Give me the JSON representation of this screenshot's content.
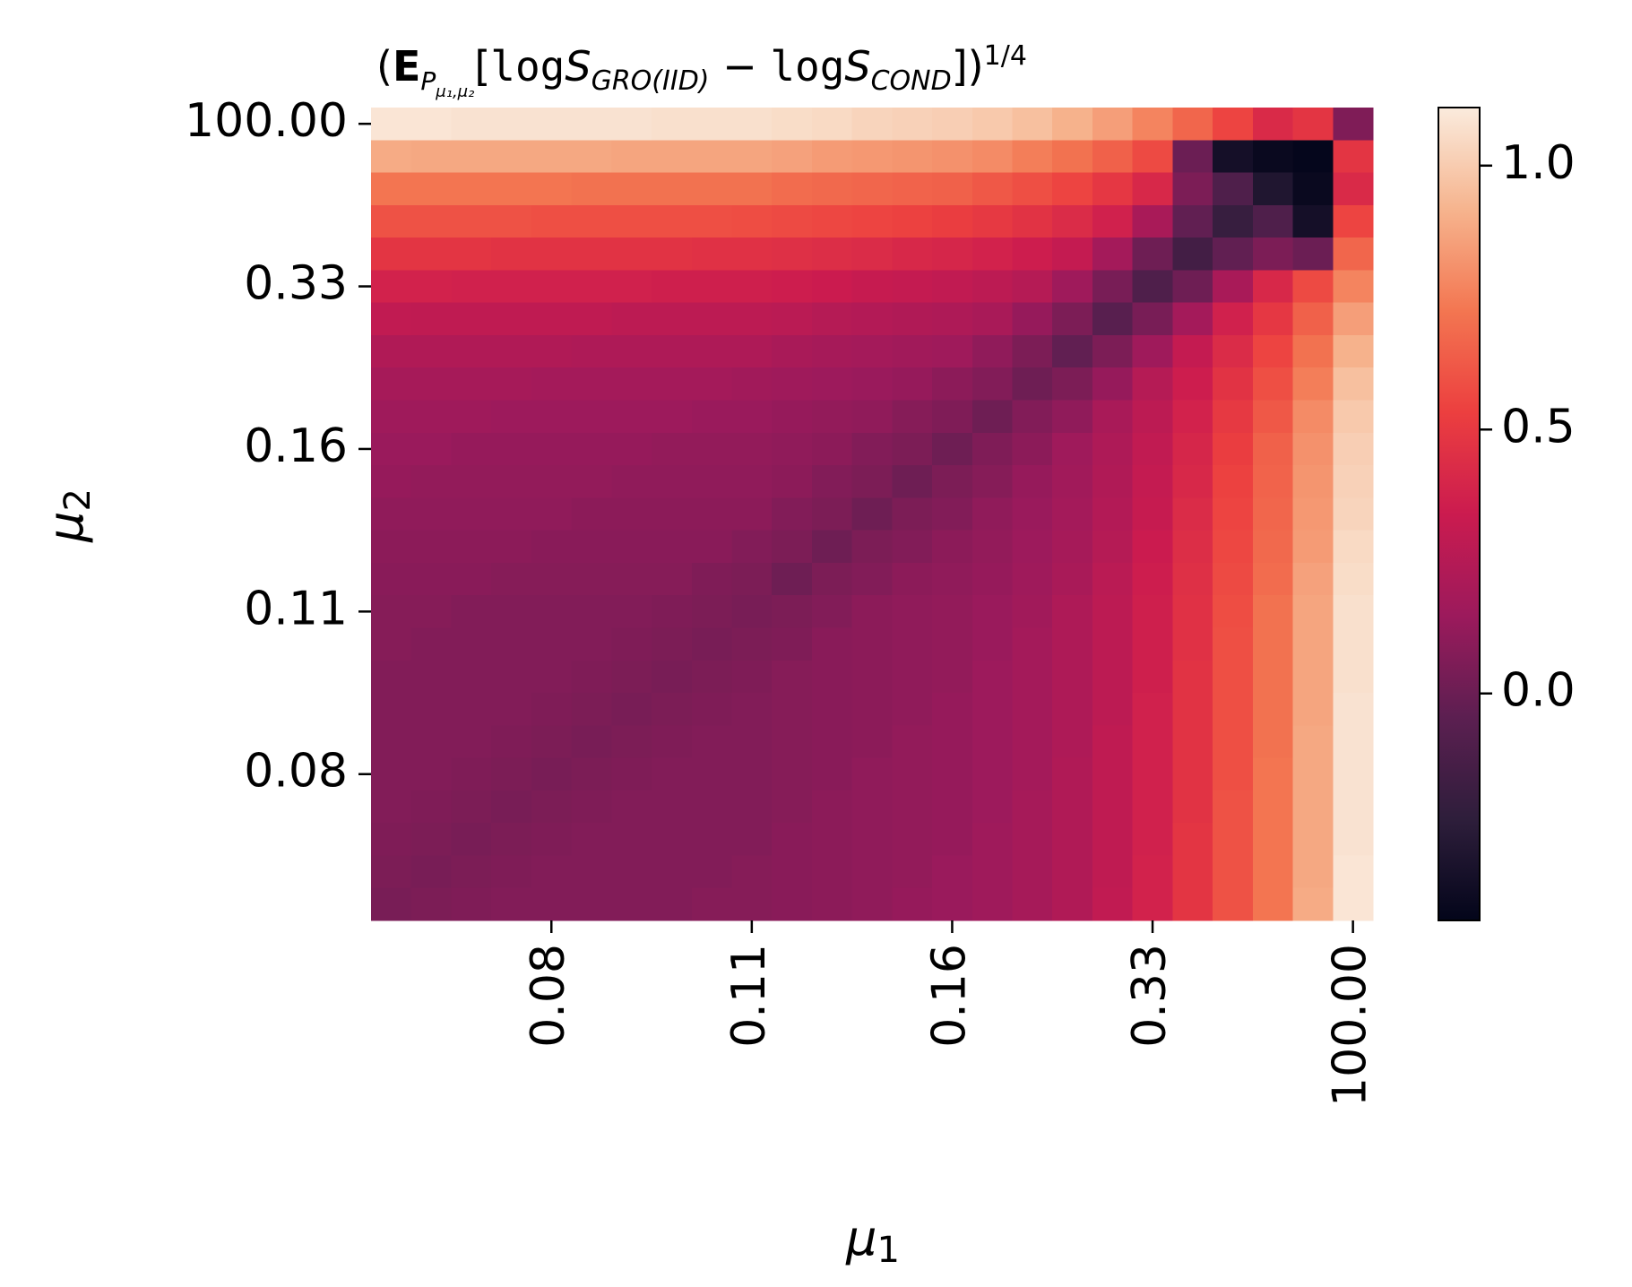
{
  "chart_data": {
    "type": "heatmap",
    "title": [
      "(",
      "E",
      "P",
      "μ₁,μ₂",
      "[",
      "log",
      "S",
      "GRO(IID)",
      " − ",
      "log",
      "S",
      "COND",
      "])",
      "1/4"
    ],
    "xlabel": [
      "μ",
      "1"
    ],
    "ylabel": [
      "μ",
      "2"
    ],
    "x_categories": [
      null,
      null,
      null,
      null,
      "0.08",
      null,
      null,
      null,
      null,
      "0.11",
      null,
      null,
      null,
      null,
      "0.16",
      null,
      null,
      null,
      null,
      "0.33",
      null,
      null,
      null,
      null,
      "100.00"
    ],
    "y_categories": [
      "100.00",
      null,
      null,
      null,
      null,
      "0.33",
      null,
      null,
      null,
      null,
      "0.16",
      null,
      null,
      null,
      null,
      "0.11",
      null,
      null,
      null,
      null,
      "0.08",
      null,
      null,
      null,
      null
    ],
    "z": [
      [
        1.09,
        1.09,
        1.08,
        1.08,
        1.08,
        1.08,
        1.08,
        1.07,
        1.07,
        1.07,
        1.06,
        1.05,
        1.03,
        1.02,
        1.01,
        0.99,
        0.96,
        0.91,
        0.85,
        0.77,
        0.67,
        0.55,
        0.42,
        0.48,
        0.06
      ],
      [
        0.89,
        0.88,
        0.88,
        0.88,
        0.88,
        0.88,
        0.87,
        0.87,
        0.87,
        0.87,
        0.86,
        0.84,
        0.83,
        0.82,
        0.81,
        0.79,
        0.75,
        0.71,
        0.65,
        0.57,
        0,
        -0.35,
        -0.4,
        -0.42,
        0.48
      ],
      [
        0.72,
        0.72,
        0.72,
        0.72,
        0.72,
        0.71,
        0.71,
        0.71,
        0.71,
        0.71,
        0.69,
        0.68,
        0.67,
        0.66,
        0.65,
        0.62,
        0.59,
        0.55,
        0.49,
        0.41,
        0.05,
        -0.1,
        -0.3,
        -0.4,
        0.42
      ],
      [
        0.6,
        0.6,
        0.6,
        0.6,
        0.59,
        0.59,
        0.59,
        0.59,
        0.59,
        0.58,
        0.57,
        0.56,
        0.55,
        0.54,
        0.52,
        0.5,
        0.47,
        0.43,
        0.37,
        0.2,
        -0.03,
        -0.2,
        -0.1,
        -0.35,
        0.55
      ],
      [
        0.48,
        0.48,
        0.48,
        0.47,
        0.47,
        0.47,
        0.47,
        0.47,
        0.46,
        0.46,
        0.45,
        0.44,
        0.43,
        0.41,
        0.4,
        0.38,
        0.35,
        0.31,
        0.18,
        0.01,
        -0.15,
        -0.03,
        0.05,
        0,
        0.67
      ],
      [
        0.38,
        0.38,
        0.37,
        0.37,
        0.37,
        0.37,
        0.37,
        0.36,
        0.36,
        0.36,
        0.35,
        0.34,
        0.32,
        0.31,
        0.3,
        0.28,
        0.25,
        0.16,
        0.04,
        -0.1,
        0.01,
        0.2,
        0.41,
        0.57,
        0.77
      ],
      [
        0.3,
        0.29,
        0.29,
        0.29,
        0.29,
        0.29,
        0.28,
        0.28,
        0.28,
        0.28,
        0.27,
        0.25,
        0.24,
        0.23,
        0.22,
        0.2,
        0.13,
        0.05,
        -0.06,
        0.04,
        0.18,
        0.37,
        0.49,
        0.65,
        0.85
      ],
      [
        0.23,
        0.23,
        0.23,
        0.23,
        0.23,
        0.22,
        0.22,
        0.22,
        0.22,
        0.22,
        0.2,
        0.19,
        0.18,
        0.17,
        0.16,
        0.11,
        0.05,
        -0.03,
        0.05,
        0.16,
        0.31,
        0.43,
        0.55,
        0.71,
        0.91
      ],
      [
        0.19,
        0.19,
        0.19,
        0.19,
        0.18,
        0.18,
        0.18,
        0.18,
        0.18,
        0.17,
        0.16,
        0.15,
        0.14,
        0.13,
        0.1,
        0.07,
        0.01,
        0.05,
        0.13,
        0.25,
        0.35,
        0.47,
        0.59,
        0.75,
        0.96
      ],
      [
        0.16,
        0.16,
        0.16,
        0.15,
        0.15,
        0.15,
        0.15,
        0.15,
        0.14,
        0.14,
        0.13,
        0.12,
        0.11,
        0.08,
        0.06,
        0.01,
        0.07,
        0.11,
        0.2,
        0.28,
        0.38,
        0.5,
        0.62,
        0.79,
        0.99
      ],
      [
        0.14,
        0.14,
        0.13,
        0.13,
        0.13,
        0.13,
        0.13,
        0.12,
        0.12,
        0.12,
        0.11,
        0.1,
        0.07,
        0.05,
        0.01,
        0.06,
        0.1,
        0.16,
        0.22,
        0.3,
        0.4,
        0.52,
        0.65,
        0.81,
        1.01
      ],
      [
        0.13,
        0.12,
        0.12,
        0.12,
        0.12,
        0.12,
        0.11,
        0.11,
        0.11,
        0.11,
        0.1,
        0.07,
        0.05,
        0.01,
        0.05,
        0.08,
        0.13,
        0.17,
        0.23,
        0.31,
        0.41,
        0.54,
        0.66,
        0.82,
        1.02
      ],
      [
        0.11,
        0.11,
        0.11,
        0.11,
        0.11,
        0.1,
        0.1,
        0.1,
        0.1,
        0.1,
        0.07,
        0.05,
        0.01,
        0.05,
        0.07,
        0.11,
        0.14,
        0.18,
        0.24,
        0.32,
        0.43,
        0.55,
        0.67,
        0.83,
        1.03
      ],
      [
        0.1,
        0.1,
        0.1,
        0.1,
        0.09,
        0.09,
        0.09,
        0.09,
        0.09,
        0.07,
        0.05,
        0.01,
        0.05,
        0.07,
        0.1,
        0.12,
        0.15,
        0.19,
        0.25,
        0.34,
        0.44,
        0.56,
        0.68,
        0.84,
        1.05
      ],
      [
        0.09,
        0.09,
        0.09,
        0.08,
        0.08,
        0.08,
        0.08,
        0.08,
        0.06,
        0.05,
        0.01,
        0.05,
        0.07,
        0.1,
        0.11,
        0.13,
        0.16,
        0.2,
        0.27,
        0.35,
        0.45,
        0.57,
        0.69,
        0.86,
        1.06
      ],
      [
        0.08,
        0.08,
        0.07,
        0.07,
        0.07,
        0.07,
        0.07,
        0.06,
        0.05,
        0.04,
        0.05,
        0.07,
        0.1,
        0.11,
        0.12,
        0.14,
        0.17,
        0.22,
        0.28,
        0.36,
        0.46,
        0.58,
        0.71,
        0.87,
        1.07
      ],
      [
        0.08,
        0.07,
        0.07,
        0.07,
        0.07,
        0.07,
        0.06,
        0.05,
        0.04,
        0.05,
        0.06,
        0.09,
        0.1,
        0.11,
        0.12,
        0.14,
        0.18,
        0.22,
        0.28,
        0.36,
        0.46,
        0.59,
        0.71,
        0.87,
        1.07
      ],
      [
        0.07,
        0.07,
        0.07,
        0.07,
        0.07,
        0.06,
        0.05,
        0.04,
        0.05,
        0.06,
        0.08,
        0.09,
        0.1,
        0.11,
        0.12,
        0.15,
        0.18,
        0.22,
        0.28,
        0.36,
        0.47,
        0.59,
        0.71,
        0.87,
        1.07
      ],
      [
        0.07,
        0.07,
        0.07,
        0.07,
        0.06,
        0.05,
        0.04,
        0.05,
        0.06,
        0.07,
        0.08,
        0.09,
        0.1,
        0.11,
        0.13,
        0.15,
        0.18,
        0.22,
        0.28,
        0.37,
        0.47,
        0.59,
        0.71,
        0.87,
        1.08
      ],
      [
        0.07,
        0.07,
        0.07,
        0.06,
        0.05,
        0.04,
        0.05,
        0.06,
        0.07,
        0.07,
        0.08,
        0.09,
        0.1,
        0.12,
        0.13,
        0.15,
        0.18,
        0.22,
        0.29,
        0.37,
        0.47,
        0.59,
        0.71,
        0.88,
        1.08
      ],
      [
        0.07,
        0.07,
        0.06,
        0.05,
        0.04,
        0.05,
        0.06,
        0.07,
        0.07,
        0.07,
        0.08,
        0.09,
        0.11,
        0.12,
        0.13,
        0.15,
        0.18,
        0.23,
        0.29,
        0.37,
        0.47,
        0.59,
        0.72,
        0.88,
        1.08
      ],
      [
        0.07,
        0.06,
        0.05,
        0.04,
        0.05,
        0.06,
        0.07,
        0.07,
        0.07,
        0.07,
        0.08,
        0.1,
        0.11,
        0.12,
        0.13,
        0.15,
        0.19,
        0.23,
        0.29,
        0.37,
        0.47,
        0.6,
        0.72,
        0.88,
        1.08
      ],
      [
        0.06,
        0.05,
        0.04,
        0.05,
        0.06,
        0.07,
        0.07,
        0.07,
        0.07,
        0.07,
        0.09,
        0.1,
        0.11,
        0.12,
        0.13,
        0.16,
        0.19,
        0.23,
        0.29,
        0.37,
        0.48,
        0.6,
        0.72,
        0.88,
        1.08
      ],
      [
        0.05,
        0.04,
        0.05,
        0.06,
        0.07,
        0.07,
        0.07,
        0.07,
        0.07,
        0.08,
        0.09,
        0.1,
        0.11,
        0.12,
        0.14,
        0.16,
        0.19,
        0.23,
        0.29,
        0.38,
        0.48,
        0.6,
        0.72,
        0.88,
        1.09
      ],
      [
        0.04,
        0.05,
        0.06,
        0.07,
        0.07,
        0.07,
        0.07,
        0.07,
        0.08,
        0.08,
        0.09,
        0.1,
        0.11,
        0.13,
        0.14,
        0.16,
        0.19,
        0.23,
        0.3,
        0.38,
        0.48,
        0.6,
        0.72,
        0.89,
        1.09
      ]
    ],
    "clim": [
      -0.43,
      1.11
    ],
    "colorbar_ticks": [
      {
        "value": 0,
        "label": "0.0"
      },
      {
        "value": 0.5,
        "label": "0.5"
      },
      {
        "value": 1,
        "label": "1.0"
      }
    ],
    "colormap": [
      "#03051a",
      "#2e1e3b",
      "#5c1f51",
      "#9c1a5c",
      "#cb1b4f",
      "#ec3f3f",
      "#f37651",
      "#f6b48e",
      "#faebdd"
    ]
  }
}
